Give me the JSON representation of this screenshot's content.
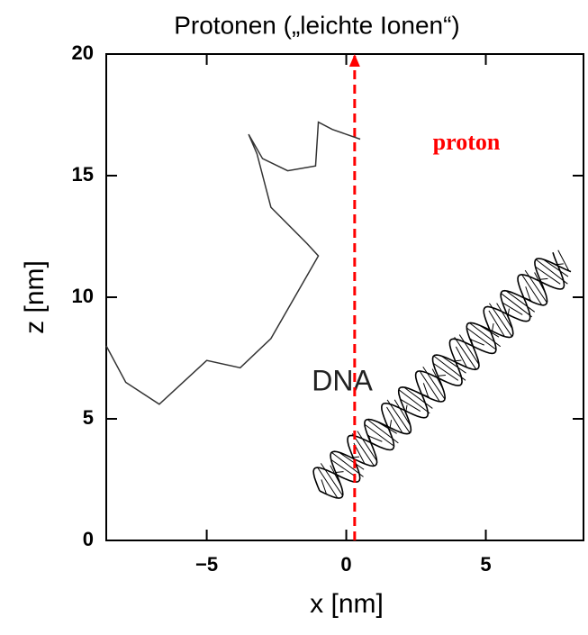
{
  "chart_data": {
    "type": "line",
    "title": "Protonen („leichte Ionen“)",
    "xlabel": "x  [nm]",
    "ylabel": "z  [nm]",
    "xlim": [
      -8.6,
      8.5
    ],
    "ylim": [
      0,
      20
    ],
    "xticks": [
      {
        "value": -5,
        "label": "−5"
      },
      0,
      5
    ],
    "yticks": [
      0,
      5,
      10,
      15,
      20
    ],
    "series": [
      {
        "name": "proton",
        "color": "#ff0000",
        "dashed": true,
        "x": [
          0.3,
          0.3
        ],
        "values": [
          0,
          20
        ]
      },
      {
        "color": "#333333",
        "x": [
          -8.6,
          -7.9,
          -6.7,
          -5.0,
          -3.8,
          -2.7,
          -1.5,
          -1.0,
          -1.4,
          -2.7,
          -3.2,
          -3.5,
          -3.0,
          -2.1,
          -1.1,
          -1.0,
          -0.5,
          0.5
        ],
        "values": [
          8.0,
          6.5,
          5.6,
          7.4,
          7.1,
          8.3,
          10.7,
          11.7,
          12.2,
          13.7,
          15.9,
          16.7,
          15.7,
          15.2,
          15.4,
          17.2,
          16.9,
          16.5
        ]
      }
    ],
    "annotations": [
      "DNA"
    ]
  }
}
